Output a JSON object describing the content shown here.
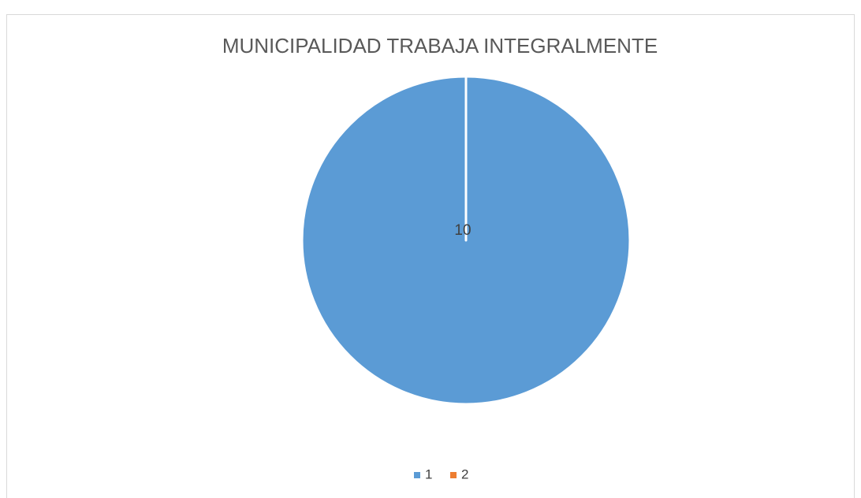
{
  "chart_data": {
    "type": "pie",
    "title": "MUNICIPALIDAD TRABAJA INTEGRALMENTE",
    "categories": [
      "1",
      "2"
    ],
    "values": [
      10,
      0
    ],
    "colors": [
      "#5b9bd5",
      "#ed7d31"
    ],
    "legend": "bottom"
  }
}
